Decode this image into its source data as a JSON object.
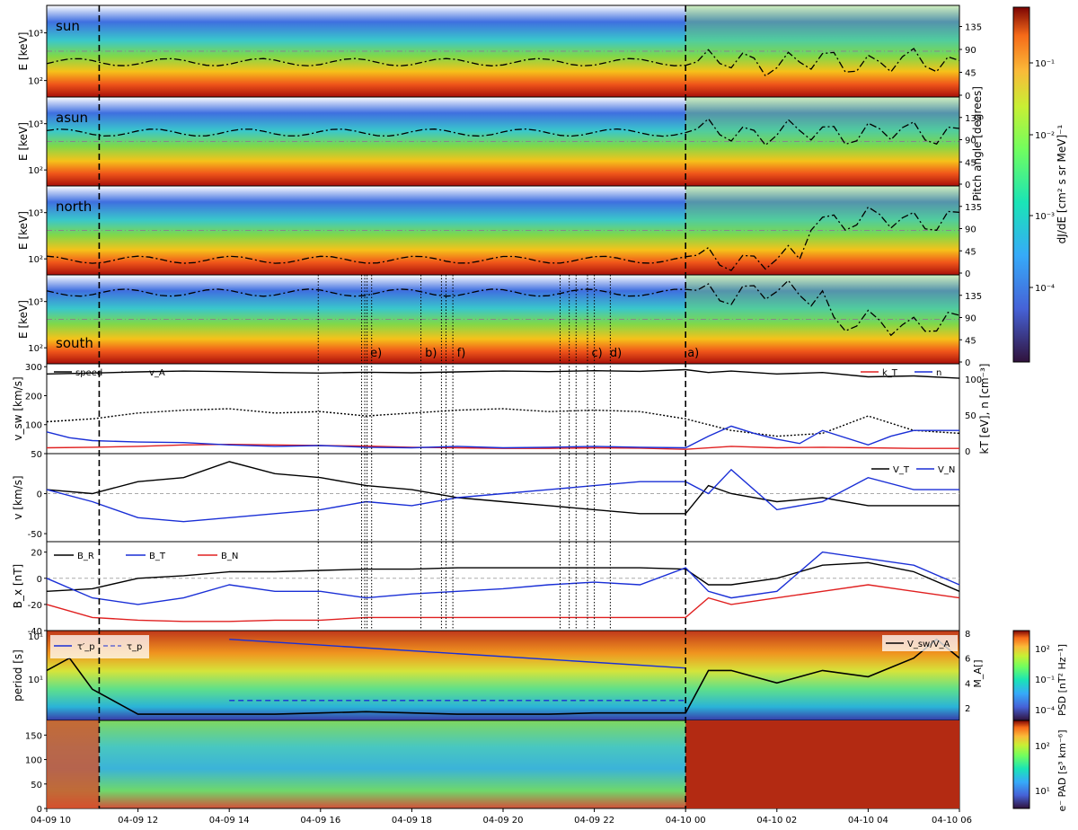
{
  "chart_data": {
    "type": "line",
    "x_ticks": [
      "04-09 10",
      "04-09 12",
      "04-09 14",
      "04-09 16",
      "04-09 18",
      "04-09 20",
      "04-09 22",
      "04-10 00",
      "04-10 02",
      "04-10 04",
      "04-10 06"
    ],
    "x_hours": [
      10,
      12,
      14,
      16,
      18,
      20,
      22,
      24,
      26,
      28,
      30
    ],
    "x_range": [
      10,
      30
    ],
    "boundaries_dashed": [
      11.15,
      24.0
    ],
    "events_dotted": [
      15.95,
      16.9,
      16.97,
      17.02,
      17.12,
      18.2,
      18.65,
      18.75,
      18.9,
      21.25,
      21.45,
      21.6,
      21.85,
      22.0,
      22.35
    ],
    "event_labels": [
      {
        "label": "e)",
        "x": 17.05
      },
      {
        "label": "b)",
        "x": 18.25
      },
      {
        "label": "f)",
        "x": 18.95
      },
      {
        "label": "c)",
        "x": 21.9
      },
      {
        "label": "d)",
        "x": 22.3
      },
      {
        "label": "a)",
        "x": 24.0
      }
    ],
    "spectrogram_panels": [
      {
        "name": "sun",
        "ylabel": "E [keV]"
      },
      {
        "name": "asun",
        "ylabel": "E  [keV]"
      },
      {
        "name": "north",
        "ylabel": "E [keV]"
      },
      {
        "name": "south",
        "ylabel": "E  [keV]"
      }
    ],
    "energy_ticks": [
      "10²",
      "10³"
    ],
    "pitch_ticks": [
      "0",
      "45",
      "90",
      "135"
    ],
    "pitch_label": "Pitch angle [degrees]",
    "colorbar_top": {
      "label": "dJ/dE [cm² s sr MeV]⁻¹",
      "ticks": [
        "10⁻¹",
        "10⁻²",
        "10⁻³",
        "10⁻⁴"
      ]
    },
    "colorbar_bottom": {
      "label": "e⁻ PAD [s³ km⁻⁶]",
      "ticks": [
        "10²",
        "10¹"
      ]
    },
    "colorbar_period": {
      "label": "PSD [nT² Hz⁻¹]",
      "ticks": [
        "10²",
        "10⁻¹",
        "10⁻⁴"
      ]
    },
    "panel_vsw": {
      "ylabel": "v_sw [km/s]",
      "ylim": [
        0,
        310
      ],
      "yticks": [
        100,
        200,
        300
      ],
      "right_label": "kT [eV], n [cm⁻³]",
      "right_ticks": [
        0,
        50,
        100
      ],
      "legend_left": [
        "speed",
        "v_A"
      ],
      "legend_right": [
        "k_T",
        "n"
      ],
      "series": [
        {
          "name": "speed",
          "color": "#000000",
          "x": [
            10,
            11,
            12,
            13,
            14,
            15,
            16,
            17,
            18,
            19,
            20,
            21,
            22,
            23,
            24,
            24.5,
            25,
            26,
            27,
            28,
            29,
            30
          ],
          "values": [
            275,
            278,
            282,
            285,
            283,
            280,
            278,
            281,
            279,
            282,
            285,
            283,
            286,
            284,
            290,
            280,
            285,
            275,
            280,
            265,
            268,
            260
          ]
        },
        {
          "name": "v_A",
          "color": "#000000",
          "dash": "2,2",
          "x": [
            10,
            11,
            12,
            13,
            14,
            15,
            16,
            17,
            18,
            19,
            20,
            21,
            22,
            23,
            24,
            25,
            26,
            27,
            28,
            29,
            30
          ],
          "values": [
            110,
            120,
            140,
            150,
            155,
            140,
            145,
            130,
            140,
            150,
            155,
            145,
            150,
            145,
            120,
            80,
            60,
            70,
            130,
            80,
            70
          ]
        },
        {
          "name": "k_T",
          "color": "#e02020",
          "x": [
            10,
            11,
            12,
            13,
            14,
            15,
            16,
            17,
            18,
            19,
            20,
            21,
            22,
            23,
            24,
            25,
            26,
            27,
            28,
            29,
            30
          ],
          "values": [
            20,
            22,
            25,
            30,
            32,
            30,
            28,
            26,
            22,
            20,
            18,
            18,
            20,
            19,
            15,
            25,
            20,
            22,
            20,
            18,
            18
          ]
        },
        {
          "name": "n",
          "color": "#1a2fd6",
          "x": [
            10,
            10.5,
            11,
            12,
            13,
            14,
            15,
            16,
            17,
            18,
            19,
            20,
            21,
            22,
            23,
            24,
            24.5,
            25,
            25.5,
            26,
            26.5,
            27,
            28,
            28.5,
            29,
            30
          ],
          "values": [
            75,
            55,
            45,
            40,
            38,
            30,
            25,
            28,
            22,
            20,
            25,
            20,
            22,
            25,
            22,
            20,
            60,
            95,
            70,
            50,
            35,
            80,
            30,
            60,
            80,
            80
          ]
        }
      ]
    },
    "panel_v": {
      "ylabel": "v [km/s]",
      "ylim": [
        -60,
        50
      ],
      "yticks": [
        -50,
        0,
        50
      ],
      "legend": [
        "V_T",
        "V_N"
      ],
      "series": [
        {
          "name": "V_T",
          "color": "#000000",
          "x": [
            10,
            11,
            12,
            13,
            14,
            15,
            16,
            17,
            18,
            19,
            20,
            21,
            22,
            23,
            24,
            24.5,
            25,
            26,
            27,
            28,
            29,
            30
          ],
          "values": [
            5,
            0,
            15,
            20,
            40,
            25,
            20,
            10,
            5,
            -5,
            -10,
            -15,
            -20,
            -25,
            -25,
            10,
            0,
            -10,
            -5,
            -15,
            -15,
            -15
          ]
        },
        {
          "name": "V_N",
          "color": "#1a2fd6",
          "x": [
            10,
            11,
            12,
            13,
            14,
            15,
            16,
            17,
            18,
            19,
            20,
            21,
            22,
            23,
            24,
            24.5,
            25,
            26,
            27,
            28,
            29,
            30
          ],
          "values": [
            5,
            -10,
            -30,
            -35,
            -30,
            -25,
            -20,
            -10,
            -15,
            -5,
            0,
            5,
            10,
            15,
            15,
            0,
            30,
            -20,
            -10,
            20,
            5,
            5
          ]
        }
      ]
    },
    "panel_b": {
      "ylabel": "B_x [nT]",
      "ylim": [
        -40,
        28
      ],
      "yticks": [
        -40,
        -20,
        0,
        20
      ],
      "legend": [
        "B_R",
        "B_T",
        "B_N"
      ],
      "series": [
        {
          "name": "B_R",
          "color": "#000000",
          "x": [
            10,
            11,
            12,
            13,
            14,
            15,
            16,
            17,
            18,
            19,
            20,
            21,
            22,
            23,
            24,
            24.5,
            25,
            26,
            27,
            28,
            29,
            30
          ],
          "values": [
            -10,
            -8,
            0,
            2,
            5,
            5,
            6,
            7,
            7,
            8,
            8,
            8,
            8,
            8,
            7,
            -5,
            -5,
            0,
            10,
            12,
            5,
            -10
          ]
        },
        {
          "name": "B_T",
          "color": "#1a2fd6",
          "x": [
            10,
            11,
            12,
            13,
            14,
            15,
            16,
            17,
            18,
            19,
            20,
            21,
            22,
            23,
            24,
            24.5,
            25,
            26,
            27,
            28,
            29,
            30
          ],
          "values": [
            0,
            -15,
            -20,
            -15,
            -5,
            -10,
            -10,
            -15,
            -12,
            -10,
            -8,
            -5,
            -3,
            -5,
            8,
            -10,
            -15,
            -10,
            20,
            15,
            10,
            -5
          ]
        },
        {
          "name": "B_N",
          "color": "#e02020",
          "x": [
            10,
            11,
            12,
            13,
            14,
            15,
            16,
            17,
            18,
            19,
            20,
            21,
            22,
            23,
            24,
            24.5,
            25,
            26,
            27,
            28,
            29,
            30
          ],
          "values": [
            -20,
            -30,
            -32,
            -33,
            -33,
            -32,
            -32,
            -30,
            -30,
            -30,
            -30,
            -30,
            -30,
            -30,
            -30,
            -15,
            -20,
            -15,
            -10,
            -5,
            -10,
            -15
          ]
        }
      ]
    },
    "panel_period": {
      "ylabel": "period [s]",
      "yticks": [
        "10¹",
        "10¹"
      ],
      "right_label": "M_A[]",
      "right_ticks": [
        2,
        4,
        6,
        8
      ],
      "legend_left": [
        "τ′_p",
        "τ_p"
      ],
      "legend_right": [
        "V_sw/V_A"
      ],
      "series": [
        {
          "name": "V_sw/V_A",
          "color": "#000000",
          "x": [
            10,
            10.5,
            11,
            11.5,
            12,
            13,
            14,
            15,
            16,
            17,
            18,
            19,
            20,
            21,
            22,
            23,
            24,
            24.5,
            25,
            26,
            27,
            28,
            29,
            29.5,
            30
          ],
          "values": [
            5,
            6,
            3.5,
            2.5,
            1.5,
            1.5,
            1.5,
            1.5,
            1.6,
            1.7,
            1.6,
            1.5,
            1.5,
            1.5,
            1.6,
            1.6,
            1.6,
            5,
            5,
            4,
            5,
            4.5,
            6,
            7.5,
            6
          ]
        }
      ],
      "lines": [
        {
          "name": "τ′_p",
          "color": "#1a2fd6",
          "x": [
            14,
            24
          ],
          "values": [
            7.5,
            5.2
          ]
        },
        {
          "name": "τ_p",
          "color": "#1a2fd6",
          "dash": "6,4",
          "x": [
            14,
            24
          ],
          "values": [
            2.6,
            2.6
          ]
        }
      ]
    },
    "panel_pad": {
      "ylabel": "",
      "ylim": [
        0,
        180
      ],
      "yticks": [
        0,
        50,
        100,
        150
      ]
    }
  }
}
